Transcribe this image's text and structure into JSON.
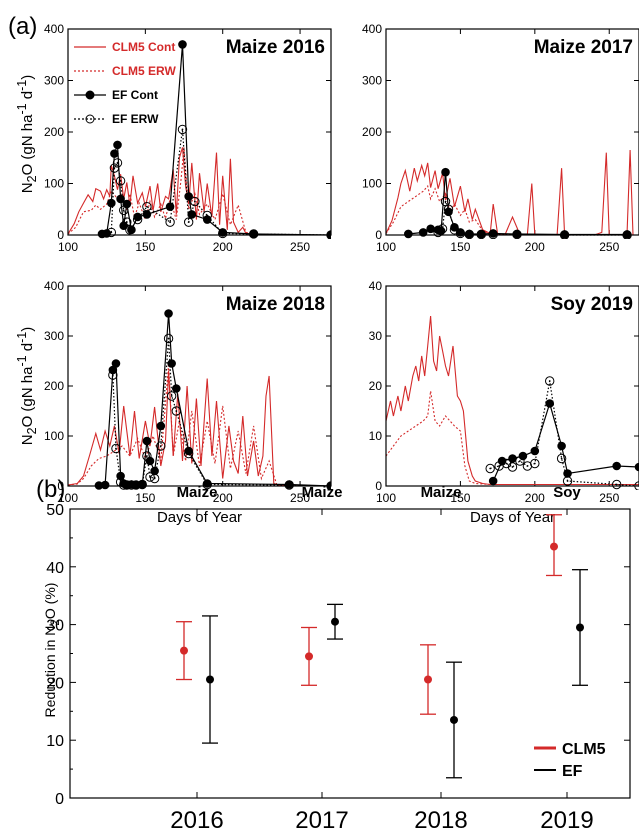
{
  "figure": {
    "panel_a_label": "(a)",
    "panel_b_label": "(b)",
    "ylabel_a": "N<sub>2</sub>O (gN ha<sup>-1</sup> d<sup>-1</sup>)",
    "xlabel_a": "Days of Year",
    "ylabel_b": "Reduction in N<sub>2</sub>O (%)"
  },
  "colors": {
    "clm5": "#d42a2a",
    "ef": "#000000"
  },
  "chart_data": [
    {
      "type": "line",
      "title": "Maize 2016",
      "xlim": [
        100,
        270
      ],
      "ylim": [
        0,
        400
      ],
      "xticks": [
        100,
        150,
        200,
        250
      ],
      "yticks": [
        0,
        100,
        200,
        300,
        400
      ],
      "legend": {
        "placement": "top-left",
        "entries": [
          {
            "label": "CLM5 Cont",
            "style": "red-solid"
          },
          {
            "label": "CLM5 ERW",
            "style": "red-dotted"
          },
          {
            "label": "EF Cont",
            "style": "black-solid-filled"
          },
          {
            "label": "EF ERW",
            "style": "black-dotted-open"
          }
        ]
      },
      "series": [
        {
          "name": "CLM5 Cont",
          "x": [
            100,
            104,
            107,
            110,
            113,
            116,
            118,
            121,
            123,
            125,
            127,
            128,
            130,
            132,
            134,
            136,
            138,
            140,
            142,
            145,
            148,
            150,
            153,
            155,
            158,
            160,
            163,
            165,
            168,
            170,
            172,
            174,
            176,
            178,
            180,
            183,
            185,
            188,
            190,
            193,
            196,
            198,
            200,
            203,
            205,
            207,
            210,
            213,
            215,
            220,
            230,
            240,
            250,
            260,
            270
          ],
          "y": [
            2,
            22,
            45,
            62,
            78,
            65,
            90,
            85,
            70,
            88,
            75,
            135,
            115,
            88,
            118,
            70,
            102,
            58,
            115,
            62,
            82,
            55,
            95,
            48,
            100,
            45,
            75,
            70,
            128,
            40,
            150,
            170,
            95,
            60,
            140,
            30,
            120,
            45,
            100,
            35,
            160,
            20,
            115,
            10,
            148,
            25,
            5,
            15,
            3,
            2,
            1,
            0,
            0,
            0,
            0
          ]
        },
        {
          "name": "CLM5 ERW",
          "x": [
            100,
            105,
            110,
            115,
            118,
            121,
            125,
            128,
            130,
            132,
            135,
            138,
            140,
            143,
            146,
            150,
            153,
            156,
            160,
            163,
            166,
            170,
            173,
            175,
            178,
            182,
            185,
            190,
            195,
            200,
            205,
            210,
            215,
            220,
            230,
            240,
            250,
            260,
            270
          ],
          "y": [
            2,
            15,
            45,
            48,
            58,
            50,
            60,
            85,
            78,
            70,
            72,
            48,
            80,
            35,
            62,
            30,
            65,
            35,
            60,
            32,
            70,
            30,
            105,
            170,
            50,
            80,
            40,
            60,
            30,
            80,
            20,
            58,
            5,
            2,
            1,
            0,
            0,
            0,
            0
          ]
        },
        {
          "name": "EF Cont",
          "x": [
            122,
            125,
            128,
            130,
            132,
            134,
            136,
            138,
            141,
            145,
            151,
            166,
            174,
            178,
            180,
            190,
            200,
            220,
            270
          ],
          "y": [
            2,
            3,
            62,
            158,
            175,
            70,
            18,
            60,
            10,
            35,
            40,
            55,
            370,
            75,
            40,
            30,
            5,
            2,
            0
          ]
        },
        {
          "name": "EF ERW",
          "x": [
            128,
            130,
            132,
            134,
            136,
            138,
            140,
            145,
            151,
            166,
            174,
            178,
            182,
            190,
            200,
            220,
            270
          ],
          "y": [
            5,
            130,
            140,
            105,
            48,
            25,
            10,
            30,
            55,
            25,
            205,
            25,
            65,
            38,
            3,
            2,
            0
          ]
        }
      ]
    },
    {
      "type": "line",
      "title": "Maize 2017",
      "xlim": [
        100,
        270
      ],
      "ylim": [
        0,
        400
      ],
      "xticks": [
        100,
        150,
        200,
        250
      ],
      "yticks": [
        0,
        100,
        200,
        300,
        400
      ],
      "series": [
        {
          "name": "CLM5 Cont",
          "x": [
            100,
            104,
            108,
            110,
            113,
            116,
            119,
            121,
            124,
            126,
            128,
            130,
            133,
            135,
            138,
            140,
            143,
            146,
            150,
            153,
            155,
            158,
            160,
            165,
            170,
            172,
            175,
            180,
            185,
            190,
            195,
            198,
            200,
            205,
            210,
            215,
            218,
            220,
            225,
            230,
            240,
            245,
            248,
            250,
            255,
            260,
            262,
            264,
            266,
            270
          ],
          "y": [
            3,
            28,
            72,
            100,
            125,
            85,
            130,
            105,
            135,
            115,
            140,
            92,
            125,
            90,
            120,
            68,
            110,
            55,
            95,
            45,
            70,
            30,
            50,
            10,
            3,
            60,
            2,
            1,
            35,
            1,
            2,
            100,
            1,
            0,
            0,
            0,
            130,
            0,
            0,
            0,
            0,
            5,
            160,
            0,
            0,
            0,
            6,
            165,
            0,
            0
          ]
        },
        {
          "name": "CLM5 ERW",
          "x": [
            100,
            105,
            110,
            115,
            120,
            125,
            128,
            130,
            133,
            136,
            140,
            143,
            146,
            150,
            153,
            156,
            160,
            165,
            170,
            180,
            190,
            200,
            220,
            240,
            270
          ],
          "y": [
            3,
            25,
            55,
            65,
            75,
            85,
            95,
            70,
            90,
            65,
            80,
            45,
            60,
            38,
            50,
            25,
            30,
            8,
            2,
            1,
            0,
            0,
            0,
            0,
            0
          ]
        },
        {
          "name": "EF Cont",
          "x": [
            115,
            125,
            130,
            135,
            137,
            140,
            142,
            146,
            150,
            156,
            164,
            172,
            188,
            220,
            262
          ],
          "y": [
            2,
            5,
            12,
            10,
            8,
            122,
            45,
            15,
            5,
            2,
            2,
            3,
            2,
            1,
            1
          ]
        },
        {
          "name": "EF ERW",
          "x": [
            135,
            138,
            140,
            142,
            146,
            150,
            156,
            164,
            172,
            188,
            220,
            262
          ],
          "y": [
            5,
            12,
            65,
            50,
            10,
            3,
            1,
            1,
            1,
            1,
            0,
            0
          ]
        }
      ]
    },
    {
      "type": "line",
      "title": "Maize 2018",
      "xlim": [
        100,
        270
      ],
      "ylim": [
        0,
        400
      ],
      "xticks": [
        100,
        150,
        200,
        250
      ],
      "yticks": [
        0,
        100,
        200,
        300,
        400
      ],
      "xlabel": "Days of Year",
      "series": [
        {
          "name": "CLM5 Cont",
          "x": [
            100,
            106,
            110,
            114,
            118,
            121,
            124,
            127,
            130,
            133,
            136,
            140,
            143,
            146,
            150,
            153,
            156,
            160,
            163,
            165,
            168,
            171,
            174,
            177,
            180,
            183,
            186,
            190,
            193,
            196,
            200,
            204,
            207,
            210,
            213,
            216,
            220,
            223,
            226,
            228,
            230,
            233,
            236,
            240,
            250,
            260,
            270
          ],
          "y": [
            2,
            5,
            20,
            62,
            105,
            72,
            110,
            80,
            120,
            65,
            160,
            60,
            150,
            55,
            130,
            80,
            158,
            40,
            90,
            230,
            60,
            185,
            50,
            200,
            45,
            175,
            40,
            215,
            60,
            170,
            15,
            120,
            50,
            25,
            140,
            20,
            90,
            20,
            60,
            180,
            220,
            5,
            2,
            1,
            0,
            0,
            0
          ]
        },
        {
          "name": "CLM5 ERW",
          "x": [
            100,
            106,
            110,
            115,
            120,
            125,
            130,
            135,
            140,
            145,
            150,
            155,
            160,
            163,
            165,
            168,
            172,
            176,
            180,
            185,
            190,
            195,
            200,
            205,
            210,
            215,
            220,
            225,
            230,
            235,
            240,
            250,
            270
          ],
          "y": [
            2,
            4,
            15,
            40,
            55,
            60,
            70,
            80,
            60,
            95,
            55,
            100,
            50,
            165,
            245,
            60,
            130,
            50,
            150,
            40,
            130,
            45,
            160,
            35,
            110,
            25,
            120,
            15,
            50,
            2,
            1,
            0,
            0
          ]
        },
        {
          "name": "EF Cont",
          "x": [
            120,
            124,
            129,
            131,
            134,
            136,
            138,
            141,
            144,
            148,
            151,
            153,
            156,
            160,
            165,
            167,
            170,
            178,
            190,
            243,
            270
          ],
          "y": [
            1,
            2,
            232,
            245,
            20,
            5,
            2,
            3,
            2,
            3,
            90,
            50,
            30,
            120,
            345,
            245,
            195,
            70,
            5,
            3,
            0
          ]
        },
        {
          "name": "EF ERW",
          "x": [
            129,
            131,
            134,
            136,
            138,
            141,
            144,
            148,
            151,
            153,
            156,
            160,
            165,
            167,
            170,
            178,
            190,
            243,
            270
          ],
          "y": [
            222,
            75,
            8,
            2,
            2,
            2,
            2,
            3,
            60,
            18,
            15,
            80,
            295,
            180,
            150,
            65,
            3,
            2,
            0
          ]
        }
      ]
    },
    {
      "type": "line",
      "title": "Soy 2019",
      "xlim": [
        100,
        270
      ],
      "ylim": [
        0,
        40
      ],
      "xticks": [
        100,
        150,
        200,
        250
      ],
      "yticks": [
        0,
        10,
        20,
        30,
        40
      ],
      "xlabel": "Days of Year",
      "series": [
        {
          "name": "CLM5 Cont",
          "x": [
            100,
            103,
            105,
            108,
            110,
            113,
            115,
            118,
            120,
            122,
            124,
            126,
            128,
            130,
            132,
            134,
            136,
            138,
            140,
            142,
            145,
            148,
            150,
            152,
            155,
            158,
            160,
            165,
            170,
            180,
            200,
            220,
            240,
            250,
            260,
            270
          ],
          "y": [
            13,
            17,
            14,
            18,
            15,
            20,
            17,
            22,
            24,
            21,
            26,
            22,
            28,
            34,
            25,
            23,
            30,
            27,
            24,
            22,
            28,
            18,
            17,
            15,
            5,
            2,
            1,
            0.5,
            0.3,
            0.3,
            0.3,
            0.3,
            0.3,
            0.3,
            0.3,
            0.3
          ]
        },
        {
          "name": "CLM5 ERW",
          "x": [
            100,
            105,
            110,
            115,
            120,
            125,
            128,
            130,
            133,
            136,
            140,
            143,
            146,
            150,
            153,
            156,
            160,
            170,
            200,
            240,
            270
          ],
          "y": [
            6,
            8,
            10,
            11,
            12,
            13,
            14,
            19,
            13,
            12,
            14,
            13,
            12,
            11,
            4,
            1,
            0.5,
            0.3,
            0.3,
            0.3,
            0.3
          ]
        },
        {
          "name": "EF Cont",
          "x": [
            172,
            178,
            185,
            192,
            200,
            210,
            218,
            222,
            255,
            270
          ],
          "y": [
            1,
            5,
            5.5,
            6,
            7,
            16.5,
            8,
            2.5,
            4,
            3.8
          ]
        },
        {
          "name": "EF ERW",
          "x": [
            170,
            176,
            181,
            185,
            190,
            195,
            200,
            210,
            218,
            222,
            255,
            270
          ],
          "y": [
            3.5,
            4,
            4.5,
            3.8,
            5,
            4,
            4.5,
            21,
            5.5,
            1,
            0.3,
            0
          ]
        }
      ]
    },
    {
      "type": "scatter",
      "title": "",
      "ylabel": "Reduction in N2O (%)",
      "ylim": [
        0,
        50
      ],
      "yticks": [
        0,
        10,
        20,
        30,
        40,
        50
      ],
      "categories": [
        "2016",
        "2017",
        "2018",
        "2019"
      ],
      "crops": [
        "Maize",
        "Maize",
        "Maize",
        "Soy"
      ],
      "legend": {
        "placement": "bottom-right",
        "entries": [
          "CLM5",
          "EF"
        ]
      },
      "series": [
        {
          "name": "CLM5",
          "values": [
            25.5,
            24.5,
            20.5,
            43.5
          ],
          "lower": [
            20.5,
            19.5,
            14.5,
            38.5
          ],
          "upper": [
            30.5,
            29.5,
            26.5,
            49
          ]
        },
        {
          "name": "EF",
          "values": [
            20.5,
            30.5,
            13.5,
            29.5
          ],
          "lower": [
            9.5,
            27.5,
            3.5,
            19.5
          ],
          "upper": [
            31.5,
            33.5,
            23.5,
            39.5
          ]
        }
      ]
    }
  ]
}
